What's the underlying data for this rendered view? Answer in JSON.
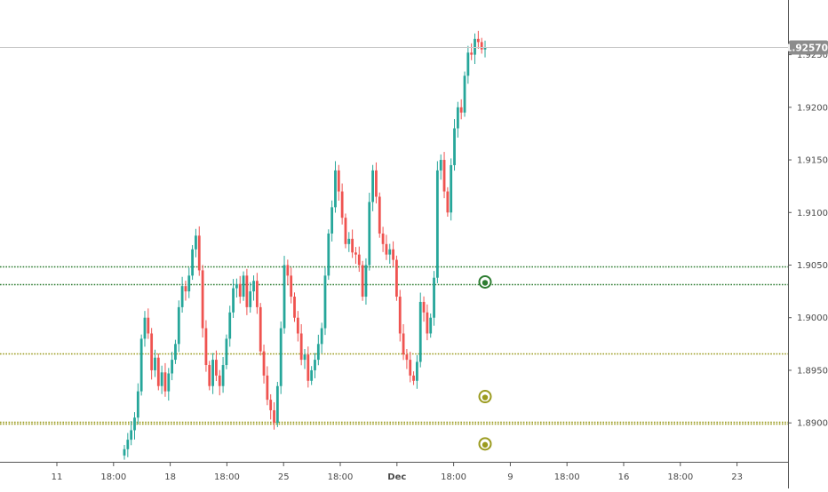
{
  "chart_data": {
    "type": "candlestick",
    "instrument_note": "",
    "x_tick_labels": [
      "11",
      "18:00",
      "18",
      "18:00",
      "25",
      "18:00",
      "Dec",
      "18:00",
      "9",
      "18:00",
      "16",
      "18:00",
      "23"
    ],
    "y_tick_labels": [
      "1.92500",
      "1.92000",
      "1.91500",
      "1.91000",
      "1.90500",
      "1.90000",
      "1.89500",
      "1.89000"
    ],
    "y_ticks": [
      1.925,
      1.92,
      1.915,
      1.91,
      1.905,
      1.9,
      1.895,
      1.89
    ],
    "ylim": [
      1.8863,
      1.9302
    ],
    "last_price": 1.9257,
    "last_price_label": "1.92570",
    "colors": {
      "up": "#26a69a",
      "down": "#ef5350",
      "last_price_tag": "#8c8c8c",
      "level_green": "#2e7d32",
      "level_olive": "#9b9b1f",
      "axis_text": "#4a4a4a"
    },
    "horizontal_levels": [
      {
        "name": "level-1",
        "price": 1.9049,
        "color": "green"
      },
      {
        "name": "level-2",
        "price": 1.9032,
        "color": "green"
      },
      {
        "name": "level-3",
        "price": 1.8966,
        "color": "olive"
      },
      {
        "name": "level-4",
        "price": 1.8901,
        "color": "olive"
      },
      {
        "name": "level-5",
        "price": 1.8899,
        "color": "olive"
      }
    ],
    "markers": [
      {
        "name": "marker-green",
        "price": 1.9034,
        "color": "green"
      },
      {
        "name": "marker-olive-1",
        "price": 1.8925,
        "color": "olive"
      },
      {
        "name": "marker-olive-2",
        "price": 1.888,
        "color": "olive"
      }
    ],
    "closes": [
      1.8875,
      1.8884,
      1.8893,
      1.8905,
      1.893,
      1.898,
      1.9,
      1.8985,
      1.895,
      1.8962,
      1.8935,
      1.8948,
      1.893,
      1.8947,
      1.896,
      1.8975,
      1.901,
      1.903,
      1.9025,
      1.904,
      1.9065,
      1.9078,
      1.9045,
      1.899,
      1.8955,
      1.8935,
      1.896,
      1.8945,
      1.8935,
      1.8955,
      1.898,
      1.9005,
      1.9028,
      1.9032,
      1.902,
      1.904,
      1.901,
      1.9025,
      1.9035,
      1.901,
      1.8968,
      1.8945,
      1.8922,
      1.8912,
      1.89,
      1.8935,
      1.899,
      1.905,
      1.904,
      1.902,
      1.9,
      1.8985,
      1.896,
      1.8965,
      1.894,
      1.895,
      1.896,
      1.8975,
      1.899,
      1.904,
      1.908,
      1.9105,
      1.914,
      1.912,
      1.9095,
      1.907,
      1.9075,
      1.9062,
      1.906,
      1.905,
      1.902,
      1.905,
      1.911,
      1.914,
      1.9115,
      1.908,
      1.907,
      1.906,
      1.9065,
      1.9055,
      1.902,
      1.8985,
      1.8965,
      1.896,
      1.8945,
      1.894,
      1.8958,
      1.9015,
      1.9005,
      1.8985,
      1.9,
      1.9038,
      1.914,
      1.915,
      1.912,
      1.91,
      1.9145,
      1.918,
      1.92,
      1.9195,
      1.923,
      1.9252,
      1.925,
      1.9265,
      1.9262,
      1.9255,
      1.9257
    ],
    "series_note": ""
  }
}
